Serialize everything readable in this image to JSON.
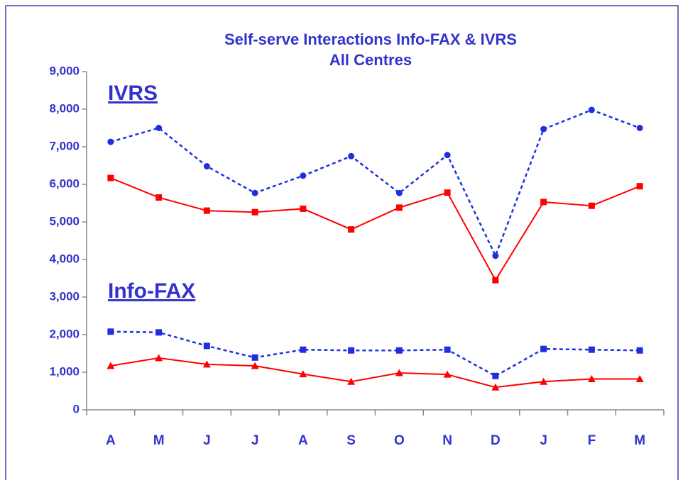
{
  "chart_data": {
    "type": "line",
    "title": "Self-serve Interactions Info-FAX & IVRS",
    "subtitle": "All Centres",
    "annotations": [
      "IVRS",
      "Info-FAX"
    ],
    "categories": [
      "A",
      "M",
      "J",
      "J",
      "A",
      "S",
      "O",
      "N",
      "D",
      "J",
      "F",
      "M"
    ],
    "series": [
      {
        "color": "#1f2fe0",
        "marker": "circle",
        "dash": true,
        "values": [
          7130,
          7500,
          6480,
          5770,
          6230,
          6750,
          5770,
          6780,
          4100,
          7470,
          7980,
          7500
        ]
      },
      {
        "color": "#ff0000",
        "marker": "square",
        "dash": false,
        "values": [
          6170,
          5650,
          5300,
          5260,
          5350,
          4800,
          5380,
          5780,
          3450,
          5530,
          5430,
          5950
        ]
      },
      {
        "color": "#1f2fe0",
        "marker": "square",
        "dash": true,
        "values": [
          2080,
          2060,
          1700,
          1390,
          1600,
          1580,
          1580,
          1600,
          900,
          1620,
          1600,
          1580
        ]
      },
      {
        "color": "#ff0000",
        "marker": "triangle",
        "dash": false,
        "values": [
          1170,
          1380,
          1210,
          1170,
          950,
          750,
          980,
          940,
          600,
          750,
          820,
          820
        ]
      }
    ],
    "ylim": [
      0,
      9000
    ],
    "yticks": [
      0,
      {
        "value": 1000,
        "label": "1,000"
      },
      {
        "value": 2000,
        "label": "2,000"
      },
      {
        "value": 3000,
        "label": "3,000"
      },
      {
        "value": 4000,
        "label": "4,000"
      },
      {
        "value": 5000,
        "label": "5,000"
      },
      {
        "value": 6000,
        "label": "6,000"
      },
      {
        "value": 7000,
        "label": "7,000"
      },
      {
        "value": 8000,
        "label": "8,000"
      },
      {
        "value": 9000,
        "label": "9,000"
      }
    ],
    "grid": false
  }
}
